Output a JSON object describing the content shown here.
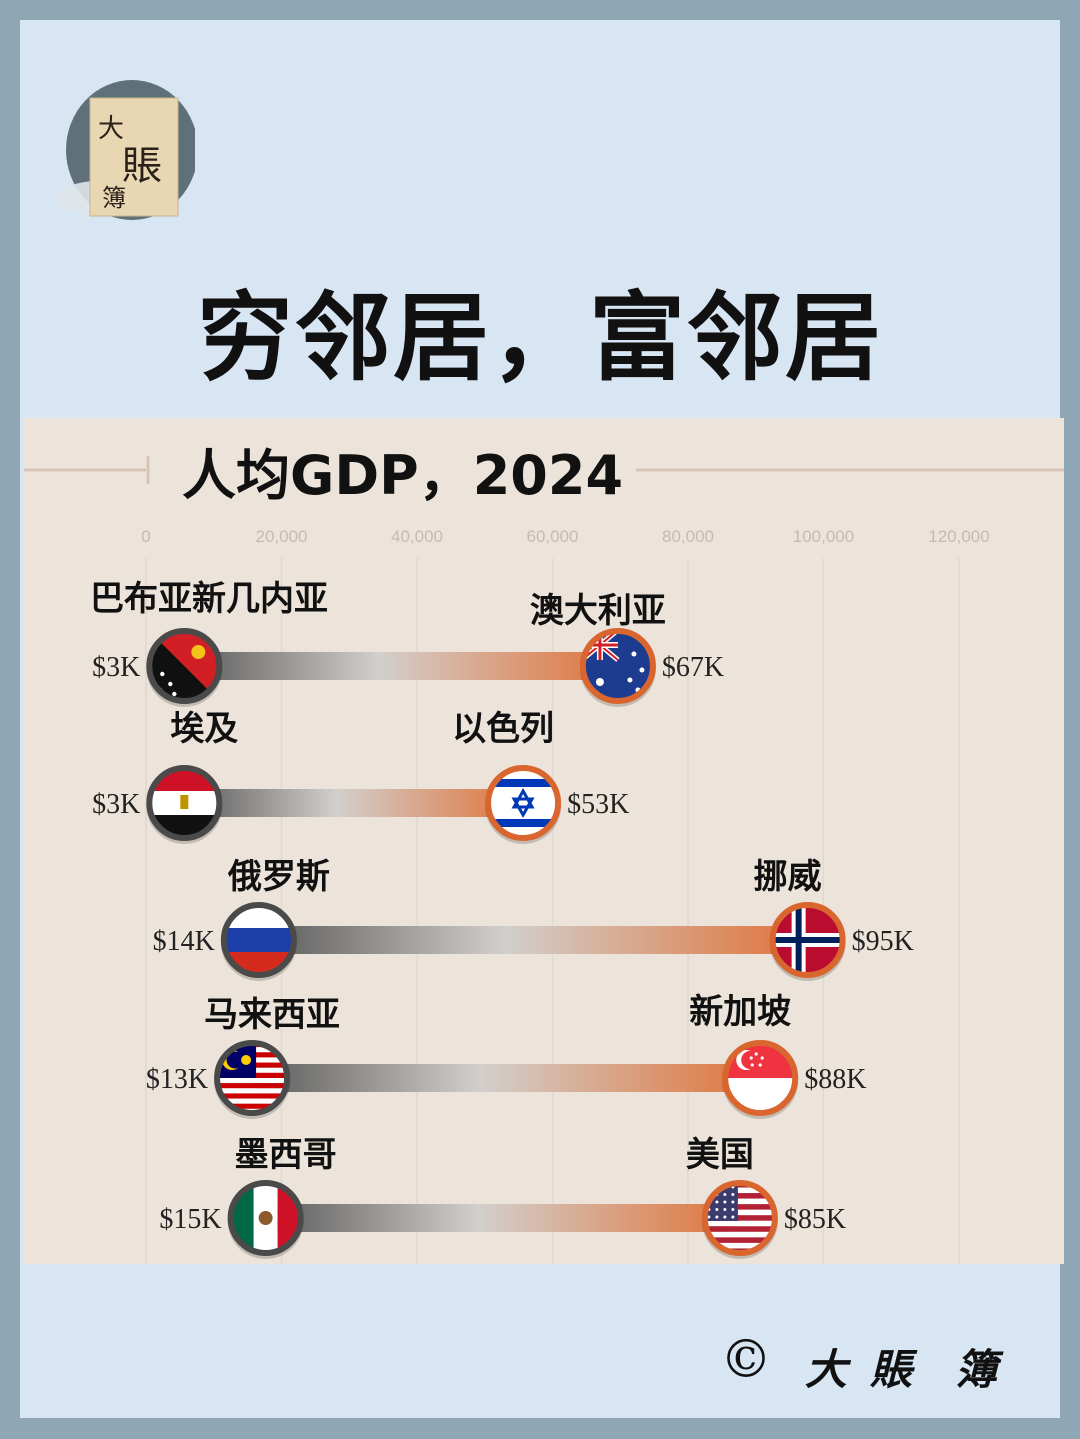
{
  "logo": {
    "chars": [
      "大",
      "賬",
      "簿"
    ]
  },
  "header": {
    "title": "穷邻居，富邻居"
  },
  "chart_data": {
    "type": "dumbbell",
    "title": "人均GDP，2024",
    "xlim": [
      0,
      120000
    ],
    "ticks": [
      "0",
      "20,000",
      "40,000",
      "60,000",
      "80,000",
      "100,000",
      "120,000"
    ],
    "tick_values": [
      0,
      20000,
      40000,
      60000,
      80000,
      100000,
      120000
    ],
    "grid": true,
    "pairs": [
      {
        "poor": {
          "name": "巴布亚新几内亚",
          "value": 3000,
          "label": "$3K",
          "flag": "papua-new-guinea-flag"
        },
        "rich": {
          "name": "澳大利亚",
          "value": 67000,
          "label": "$67K",
          "flag": "australia-flag"
        }
      },
      {
        "poor": {
          "name": "埃及",
          "value": 3000,
          "label": "$3K",
          "flag": "egypt-flag"
        },
        "rich": {
          "name": "以色列",
          "value": 53000,
          "label": "$53K",
          "flag": "israel-flag"
        }
      },
      {
        "poor": {
          "name": "俄罗斯",
          "value": 14000,
          "label": "$14K",
          "flag": "russia-flag"
        },
        "rich": {
          "name": "挪威",
          "value": 95000,
          "label": "$95K",
          "flag": "norway-flag"
        }
      },
      {
        "poor": {
          "name": "马来西亚",
          "value": 13000,
          "label": "$13K",
          "flag": "malaysia-flag"
        },
        "rich": {
          "name": "新加坡",
          "value": 88000,
          "label": "$88K",
          "flag": "singapore-flag"
        }
      },
      {
        "poor": {
          "name": "墨西哥",
          "value": 15000,
          "label": "$15K",
          "flag": "mexico-flag"
        },
        "rich": {
          "name": "美国",
          "value": 85000,
          "label": "$85K",
          "flag": "usa-flag"
        }
      }
    ]
  },
  "footer": {
    "copyright": "©",
    "chars": [
      "大",
      "賬",
      "簿"
    ]
  },
  "colors": {
    "background": "#d8e6f3",
    "frame": "#8fa6b4",
    "panel": "#ece4da",
    "bar_start": "#555555",
    "bar_end": "#e0743a"
  }
}
